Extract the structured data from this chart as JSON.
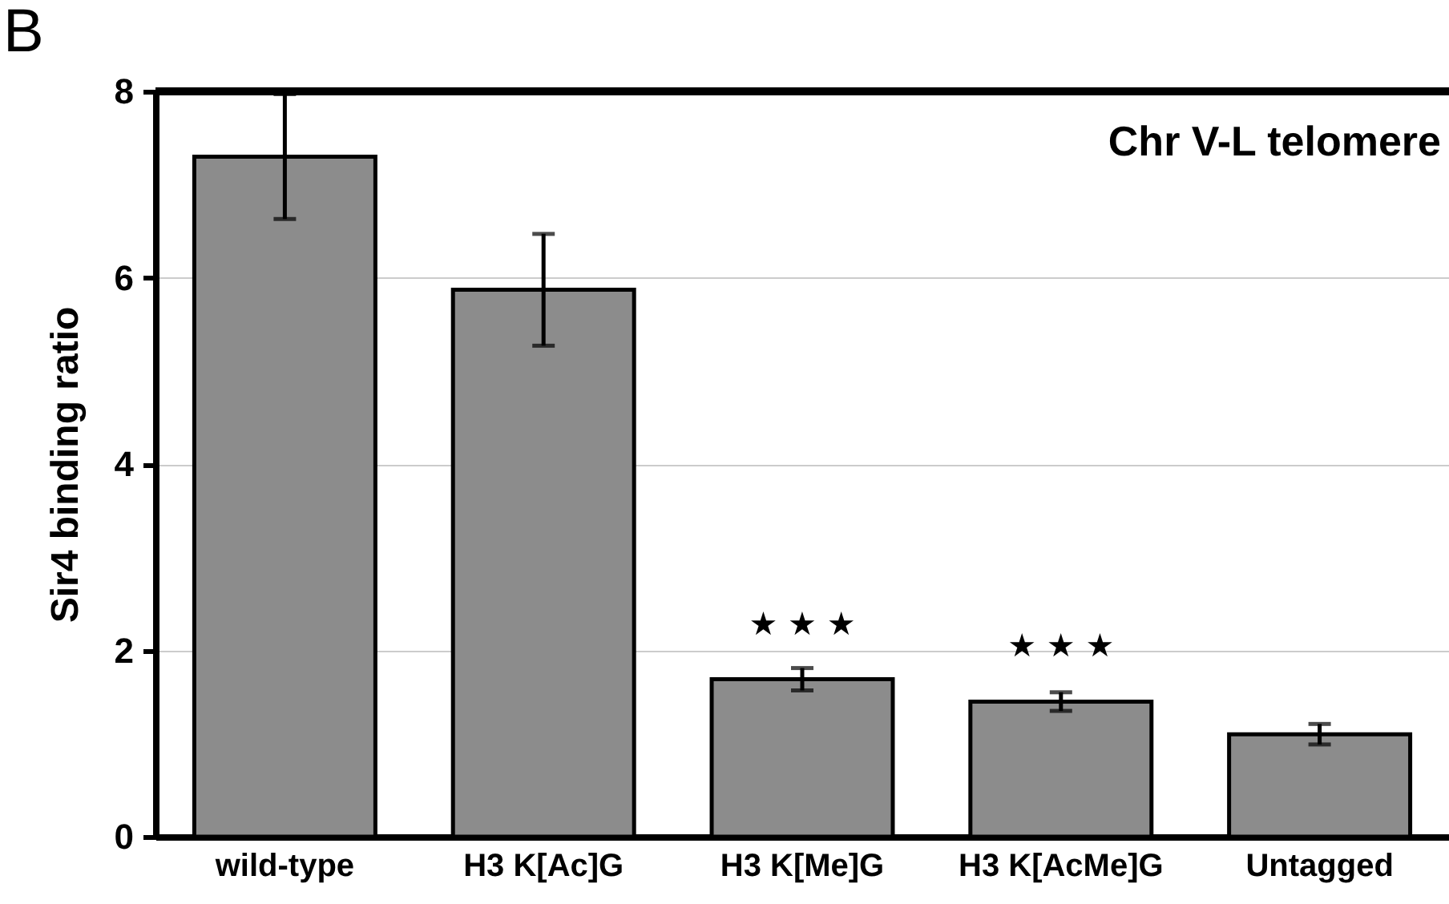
{
  "chart_data": {
    "type": "bar",
    "title": "Chr V-L telomere",
    "ylabel": "Sir4 binding ratio",
    "categories": [
      "wild-type",
      "H3 K[Ac]G",
      "H3 K[Me]G",
      "H3 K[AcMe]G",
      "Untagged"
    ],
    "values": [
      7.3,
      5.87,
      1.69,
      1.45,
      1.1
    ],
    "errors": [
      0.67,
      0.6,
      0.12,
      0.1,
      0.11
    ],
    "color": "#8c8c8c",
    "ylim": [
      0,
      8
    ],
    "yticks": [
      0,
      2,
      4,
      6,
      8
    ],
    "grid": "y",
    "annotations": [
      "B",
      "★ ★ ★",
      "★ ★ ★"
    ]
  }
}
